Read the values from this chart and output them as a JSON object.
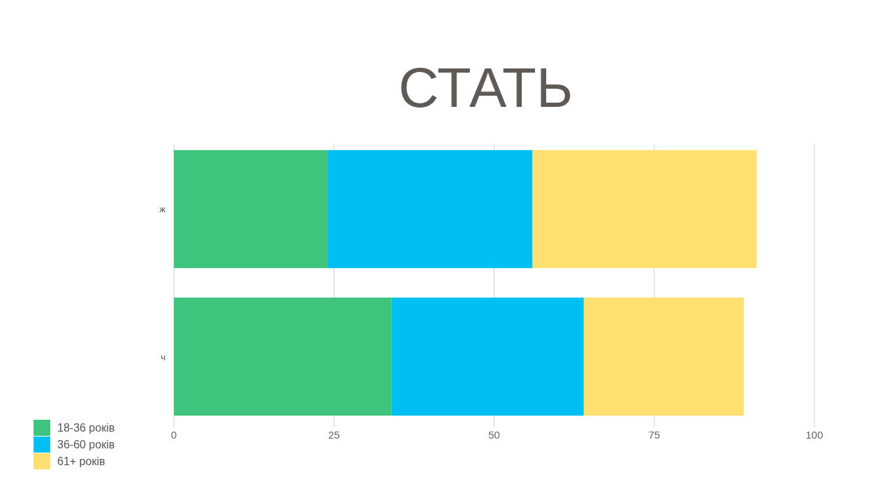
{
  "chart_data": {
    "type": "bar",
    "title": "СТАТЬ",
    "orientation": "horizontal",
    "stacked": true,
    "categories": [
      "ж",
      "ч"
    ],
    "series": [
      {
        "name": "18-36 років",
        "color": "#3ec47c",
        "values": [
          24,
          34
        ]
      },
      {
        "name": "36-60 років",
        "color": "#00bff3",
        "values": [
          32,
          30
        ]
      },
      {
        "name": "61+ років",
        "color": "#ffe070",
        "values": [
          35,
          25
        ]
      }
    ],
    "xlim": [
      0,
      100
    ],
    "xticks": [
      0,
      25,
      50,
      75,
      100
    ],
    "grid": "x",
    "legend": "bottom left"
  }
}
